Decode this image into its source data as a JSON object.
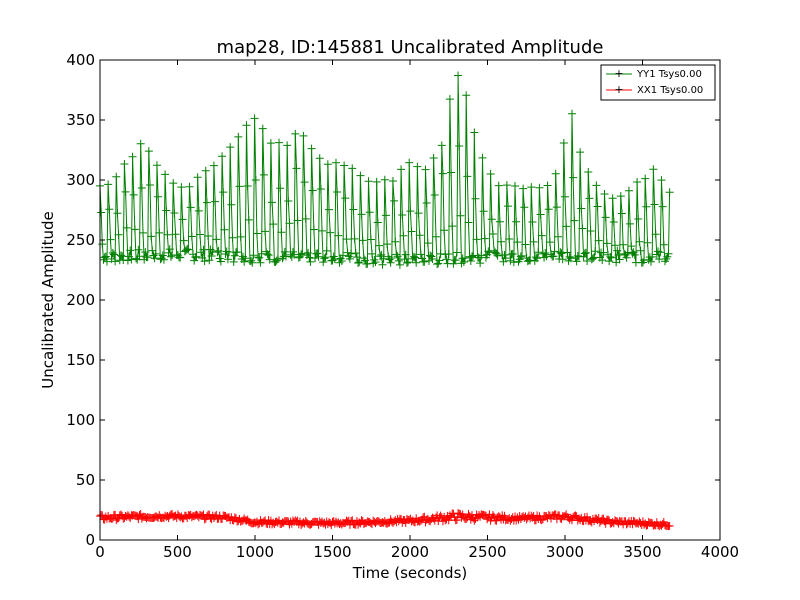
{
  "chart_data": {
    "type": "line",
    "title": "map28, ID:145881 Uncalibrated Amplitude",
    "xlabel": "Time (seconds)",
    "ylabel": "Uncalibrated Amplitude",
    "xlim": [
      0,
      4000
    ],
    "ylim": [
      0,
      400
    ],
    "xticks": [
      0,
      500,
      1000,
      1500,
      2000,
      2500,
      3000,
      3500,
      4000
    ],
    "yticks": [
      0,
      50,
      100,
      150,
      200,
      250,
      300,
      350,
      400
    ],
    "legend_position": "top-right",
    "marker": "+",
    "series": [
      {
        "name": "YY1 Tsys0.00",
        "color": "#008000",
        "description": "oscillating between ~230 baseline and a peak envelope",
        "baseline": [
          [
            0,
            236
          ],
          [
            500,
            238
          ],
          [
            1000,
            236
          ],
          [
            1500,
            236
          ],
          [
            2000,
            233
          ],
          [
            2500,
            236
          ],
          [
            3000,
            237
          ],
          [
            3500,
            236
          ],
          [
            3680,
            236
          ]
        ],
        "peak_envelope": [
          [
            0,
            298
          ],
          [
            100,
            305
          ],
          [
            200,
            320
          ],
          [
            270,
            333
          ],
          [
            350,
            318
          ],
          [
            420,
            305
          ],
          [
            500,
            298
          ],
          [
            600,
            300
          ],
          [
            700,
            312
          ],
          [
            800,
            322
          ],
          [
            900,
            338
          ],
          [
            960,
            350
          ],
          [
            1020,
            353
          ],
          [
            1100,
            333
          ],
          [
            1200,
            330
          ],
          [
            1270,
            343
          ],
          [
            1330,
            342
          ],
          [
            1400,
            322
          ],
          [
            1500,
            315
          ],
          [
            1600,
            313
          ],
          [
            1700,
            305
          ],
          [
            1800,
            300
          ],
          [
            1900,
            305
          ],
          [
            2000,
            317
          ],
          [
            2100,
            312
          ],
          [
            2200,
            330
          ],
          [
            2270,
            378
          ],
          [
            2310,
            392
          ],
          [
            2350,
            380
          ],
          [
            2400,
            350
          ],
          [
            2450,
            325
          ],
          [
            2500,
            308
          ],
          [
            2600,
            298
          ],
          [
            2700,
            296
          ],
          [
            2800,
            296
          ],
          [
            2900,
            297
          ],
          [
            2950,
            308
          ],
          [
            3000,
            340
          ],
          [
            3020,
            364
          ],
          [
            3060,
            350
          ],
          [
            3100,
            325
          ],
          [
            3200,
            300
          ],
          [
            3300,
            285
          ],
          [
            3400,
            290
          ],
          [
            3500,
            303
          ],
          [
            3580,
            310
          ],
          [
            3650,
            300
          ],
          [
            3680,
            292
          ]
        ]
      },
      {
        "name": "XX1 Tsys0.00",
        "color": "#ff0000",
        "description": "band between lower and upper edge",
        "lower": [
          [
            0,
            16
          ],
          [
            400,
            18
          ],
          [
            800,
            17
          ],
          [
            1000,
            13
          ],
          [
            1500,
            12
          ],
          [
            2000,
            14
          ],
          [
            2300,
            16
          ],
          [
            2700,
            16
          ],
          [
            3000,
            17
          ],
          [
            3300,
            13
          ],
          [
            3680,
            11
          ]
        ],
        "upper": [
          [
            0,
            21
          ],
          [
            400,
            22
          ],
          [
            800,
            21
          ],
          [
            1000,
            17
          ],
          [
            1500,
            16
          ],
          [
            2000,
            18
          ],
          [
            2300,
            23
          ],
          [
            2700,
            20
          ],
          [
            3000,
            22
          ],
          [
            3300,
            17
          ],
          [
            3680,
            15
          ]
        ]
      }
    ]
  }
}
